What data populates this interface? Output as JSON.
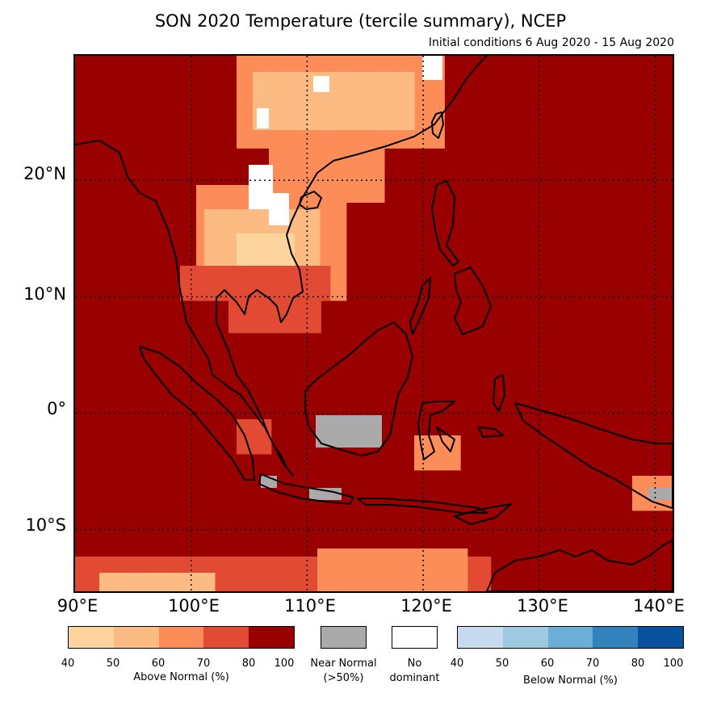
{
  "title": "SON 2020 Temperature (tercile summary), NCEP",
  "subtitle": "Initial conditions 6 Aug 2020 - 15 Aug 2020",
  "map": {
    "lat_labels": [
      "20°N",
      "10°N",
      "0°",
      "10°S"
    ],
    "lon_labels": [
      "90°E",
      "100°E",
      "110°E",
      "120°E",
      "130°E",
      "140°E"
    ],
    "lon_range": [
      90,
      141.5
    ],
    "lat_range": [
      -15.3,
      30.7
    ],
    "background_color": "#990000"
  },
  "legend": {
    "above": {
      "label": "Above Normal (%)",
      "ticks": [
        "40",
        "50",
        "60",
        "70",
        "80",
        "100"
      ],
      "colors": [
        "#fdd49e",
        "#fdbb84",
        "#fc8d59",
        "#e34a33",
        "#990000"
      ]
    },
    "near": {
      "label_line1": "Near Normal",
      "label_line2": "(>50%)",
      "color": "#aaaaaa"
    },
    "none": {
      "label_line1": "No",
      "label_line2": "dominant",
      "color": "#ffffff"
    },
    "below": {
      "label": "Below Normal (%)",
      "ticks": [
        "40",
        "50",
        "60",
        "70",
        "80",
        "100"
      ],
      "colors": [
        "#c6dbef",
        "#9ecae1",
        "#6baed6",
        "#3182bd",
        "#08519c"
      ]
    }
  }
}
